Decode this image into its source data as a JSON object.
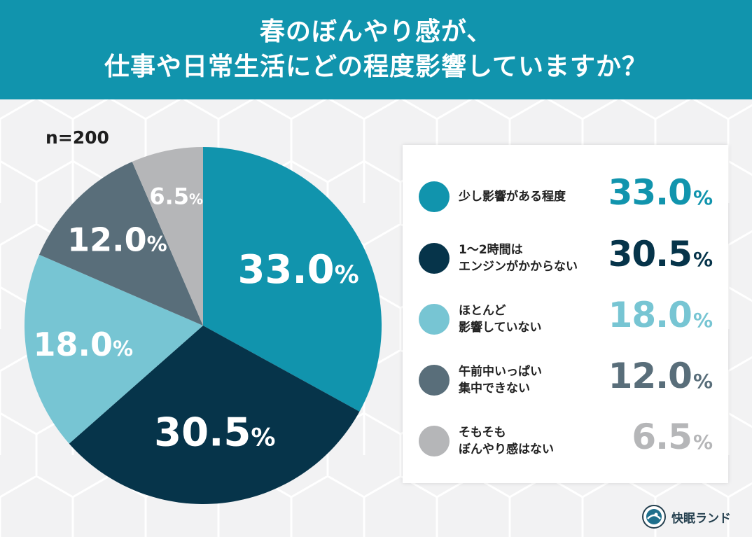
{
  "header": {
    "title_line1": "春のぼんやり感が、",
    "title_line2": "仕事や日常生活にどの程度影響していますか？"
  },
  "sample_size": "n=200",
  "colors": {
    "header_bg": "#1194ad",
    "series": [
      "#1194ad",
      "#06344a",
      "#77c5d3",
      "#596e7a",
      "#b5b6b8"
    ]
  },
  "chart_data": {
    "type": "pie",
    "categories": [
      "少し影響がある程度",
      "1〜2時間はエンジンがかからない",
      "ほとんど影響していない",
      "午前中いっぱい集中できない",
      "そもそもぼんやり感はない"
    ],
    "values": [
      33.0,
      30.5,
      18.0,
      12.0,
      6.5
    ],
    "unit": "%",
    "title": "",
    "legend_placement": "right"
  },
  "legend": [
    {
      "line1": "少し影響がある程度",
      "line2": "",
      "value": "33.0",
      "pct": "%",
      "color": "#1194ad"
    },
    {
      "line1": "1〜2時間は",
      "line2": "エンジンがかからない",
      "value": "30.5",
      "pct": "%",
      "color": "#06344a"
    },
    {
      "line1": "ほとんど",
      "line2": "影響していない",
      "value": "18.0",
      "pct": "%",
      "color": "#77c5d3"
    },
    {
      "line1": "午前中いっぱい",
      "line2": "集中できない",
      "value": "12.0",
      "pct": "%",
      "color": "#596e7a"
    },
    {
      "line1": "そもそも",
      "line2": "ぼんやり感はない",
      "value": "6.5",
      "pct": "%",
      "color": "#b5b6b8"
    }
  ],
  "brand": {
    "name": "快眠ランド",
    "logo_icon": "kaimin-land-logo-icon"
  }
}
